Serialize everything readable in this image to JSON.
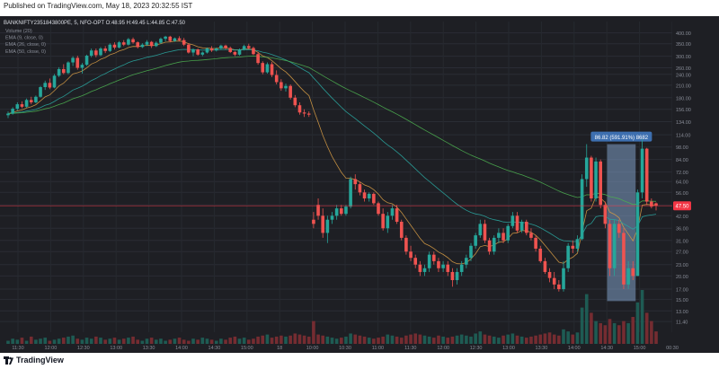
{
  "header": {
    "published": "Published on TradingView.com, May 18, 2023 20:32:55 IST"
  },
  "footer": {
    "brand": "TradingView"
  },
  "chart_data": {
    "type": "candlestick",
    "title": "BANKNIFTY2351843800PE, 5, NFO-OPT",
    "ohlc_legend": "O:48.95 H:49.45 L:44.85 C:47.50",
    "indicators": [
      "Volume (20)",
      "EMA (9, close, 0)",
      "EMA (26, close, 0)",
      "EMA (50, close, 0)"
    ],
    "y_axis": {
      "scale": "log",
      "range": [
        10,
        460
      ],
      "ticks": [
        400.0,
        350.0,
        300.0,
        260.0,
        240.0,
        210.0,
        180.0,
        156.0,
        134.0,
        114.0,
        98.0,
        84.0,
        72.0,
        64.0,
        56.0,
        48.0,
        42.0,
        36.0,
        31.0,
        27.0,
        23.0,
        20.0,
        17.0,
        15.0,
        13.0,
        11.4
      ]
    },
    "x_axis": {
      "ticks": [
        "11:30",
        "12:00",
        "12:30",
        "13:00",
        "13:30",
        "14:00",
        "14:30",
        "15:00",
        "18",
        "10:00",
        "10:30",
        "11:00",
        "11:30",
        "12:00",
        "12:30",
        "13:00",
        "13:30",
        "14:00",
        "14:30",
        "15:00",
        "00:30"
      ]
    },
    "last_price": {
      "value": 47.5,
      "label": "47.50",
      "color": "#f23645"
    },
    "measure": {
      "label": "86.82 (591.91%) 8682",
      "from": 14.67,
      "to": 101.49,
      "start_bar": 130,
      "end_bar": 135
    },
    "colors": {
      "up": "#26a69a",
      "down": "#ef5350",
      "ema9": "#d49a45",
      "ema26": "#2aa6a0",
      "ema50": "#4caf50",
      "measure": "#7f9fc6"
    },
    "candles": [
      [
        145.0,
        152.0,
        140.0,
        148.0
      ],
      [
        148.0,
        160.0,
        146.0,
        157.0
      ],
      [
        157.0,
        170.0,
        154.0,
        166.0
      ],
      [
        166.0,
        172.0,
        158.0,
        161.0
      ],
      [
        161.0,
        178.0,
        159.0,
        175.0
      ],
      [
        175.0,
        182.0,
        166.0,
        170.0
      ],
      [
        170.0,
        185.0,
        168.0,
        182.0
      ],
      [
        182.0,
        208.0,
        180.0,
        205.0
      ],
      [
        205.0,
        222.0,
        198.0,
        216.0
      ],
      [
        216.0,
        228.0,
        200.0,
        204.0
      ],
      [
        204.0,
        241.0,
        202.0,
        236.0
      ],
      [
        236.0,
        262.0,
        232.0,
        256.0
      ],
      [
        256.0,
        272.0,
        240.0,
        244.0
      ],
      [
        244.0,
        282.0,
        240.0,
        278.0
      ],
      [
        278.0,
        300.0,
        266.0,
        294.0
      ],
      [
        294.0,
        302.0,
        254.0,
        260.0
      ],
      [
        260.0,
        276.0,
        242.0,
        270.0
      ],
      [
        270.0,
        306.0,
        266.0,
        302.0
      ],
      [
        302.0,
        330.0,
        296.0,
        322.0
      ],
      [
        322.0,
        330.0,
        296.0,
        304.0
      ],
      [
        304.0,
        336.0,
        300.0,
        330.0
      ],
      [
        330.0,
        340.0,
        312.0,
        320.0
      ],
      [
        320.0,
        352.0,
        316.0,
        346.0
      ],
      [
        346.0,
        356.0,
        326.0,
        334.0
      ],
      [
        334.0,
        362.0,
        330.0,
        356.0
      ],
      [
        356.0,
        366.0,
        340.0,
        346.0
      ],
      [
        346.0,
        376.0,
        342.0,
        370.0
      ],
      [
        370.0,
        378.0,
        350.0,
        356.0
      ],
      [
        356.0,
        360.0,
        330.0,
        336.0
      ],
      [
        336.0,
        352.0,
        332.0,
        346.0
      ],
      [
        346.0,
        366.0,
        340.0,
        358.0
      ],
      [
        358.0,
        362.0,
        332.0,
        340.0
      ],
      [
        340.0,
        360.0,
        336.0,
        354.0
      ],
      [
        354.0,
        378.0,
        350.0,
        372.0
      ],
      [
        372.0,
        386.0,
        360.0,
        382.0
      ],
      [
        382.0,
        386.0,
        356.0,
        362.0
      ],
      [
        362.0,
        378.0,
        358.0,
        374.0
      ],
      [
        374.0,
        384.0,
        360.0,
        366.0
      ],
      [
        366.0,
        376.0,
        340.0,
        346.0
      ],
      [
        346.0,
        352.0,
        310.0,
        314.0
      ],
      [
        314.0,
        330.0,
        300.0,
        326.0
      ],
      [
        326.0,
        330.0,
        302.0,
        306.0
      ],
      [
        306.0,
        318.0,
        300.0,
        314.0
      ],
      [
        314.0,
        334.0,
        310.0,
        330.0
      ],
      [
        330.0,
        340.0,
        316.0,
        322.0
      ],
      [
        322.0,
        334.0,
        318.0,
        330.0
      ],
      [
        330.0,
        346.0,
        326.0,
        342.0
      ],
      [
        342.0,
        346.0,
        326.0,
        332.0
      ],
      [
        332.0,
        338.0,
        312.0,
        316.0
      ],
      [
        316.0,
        320.0,
        300.0,
        306.0
      ],
      [
        306.0,
        330.0,
        302.0,
        326.0
      ],
      [
        326.0,
        346.0,
        322.0,
        340.0
      ],
      [
        340.0,
        350.0,
        326.0,
        332.0
      ],
      [
        332.0,
        338.0,
        304.0,
        308.0
      ],
      [
        308.0,
        316.0,
        270.0,
        276.0
      ],
      [
        276.0,
        282.0,
        240.0,
        246.0
      ],
      [
        246.0,
        278.0,
        242.0,
        272.0
      ],
      [
        272.0,
        280.0,
        232.0,
        238.0
      ],
      [
        238.0,
        252.0,
        212.0,
        218.0
      ],
      [
        218.0,
        226.0,
        196.0,
        202.0
      ],
      [
        202.0,
        214.0,
        194.0,
        208.0
      ],
      [
        208.0,
        212.0,
        176.0,
        180.0
      ],
      [
        180.0,
        186.0,
        160.0,
        164.0
      ],
      [
        164.0,
        170.0,
        146.0,
        150.0
      ],
      [
        150.0,
        156.0,
        142.0,
        148.0
      ],
      [
        148.0,
        152.0,
        142.0,
        146.0
      ],
      [
        40.0,
        44.0,
        36.0,
        38.0
      ],
      [
        48.0,
        52.0,
        40.0,
        42.0
      ],
      [
        42.0,
        46.0,
        32.0,
        34.0
      ],
      [
        34.0,
        42.0,
        30.0,
        40.0
      ],
      [
        40.0,
        44.0,
        38.0,
        42.0
      ],
      [
        42.0,
        48.0,
        40.0,
        46.0
      ],
      [
        46.0,
        48.0,
        42.0,
        43.0
      ],
      [
        43.0,
        48.0,
        42.0,
        47.0
      ],
      [
        47.0,
        68.0,
        46.0,
        66.0
      ],
      [
        66.0,
        70.0,
        58.0,
        62.0
      ],
      [
        62.0,
        64.0,
        54.0,
        56.0
      ],
      [
        56.0,
        58.0,
        50.0,
        52.0
      ],
      [
        52.0,
        56.0,
        50.0,
        55.0
      ],
      [
        55.0,
        56.0,
        48.0,
        49.0
      ],
      [
        49.0,
        50.0,
        42.0,
        43.0
      ],
      [
        43.0,
        46.0,
        35.0,
        36.0
      ],
      [
        36.0,
        44.0,
        34.0,
        42.0
      ],
      [
        42.0,
        48.0,
        40.0,
        46.0
      ],
      [
        46.0,
        48.0,
        38.0,
        39.0
      ],
      [
        39.0,
        40.0,
        31.0,
        32.0
      ],
      [
        32.0,
        33.0,
        26.0,
        27.0
      ],
      [
        27.0,
        29.0,
        24.0,
        25.0
      ],
      [
        25.0,
        26.0,
        22.0,
        23.0
      ],
      [
        23.0,
        24.0,
        20.0,
        21.0
      ],
      [
        21.0,
        23.0,
        20.0,
        22.0
      ],
      [
        22.0,
        27.0,
        21.0,
        26.0
      ],
      [
        26.0,
        27.0,
        23.0,
        24.0
      ],
      [
        24.0,
        25.0,
        21.0,
        22.0
      ],
      [
        22.0,
        24.0,
        21.0,
        23.0
      ],
      [
        23.0,
        24.0,
        20.0,
        21.0
      ],
      [
        21.0,
        22.0,
        17.5,
        19.0
      ],
      [
        19.0,
        22.0,
        18.0,
        21.0
      ],
      [
        21.0,
        24.0,
        20.0,
        23.0
      ],
      [
        23.0,
        26.0,
        22.0,
        25.0
      ],
      [
        25.0,
        30.0,
        24.0,
        29.0
      ],
      [
        29.0,
        34.0,
        28.0,
        33.0
      ],
      [
        33.0,
        40.0,
        32.0,
        38.0
      ],
      [
        38.0,
        40.0,
        30.0,
        31.0
      ],
      [
        31.0,
        32.0,
        26.0,
        27.0
      ],
      [
        27.0,
        33.0,
        26.0,
        32.0
      ],
      [
        32.0,
        36.0,
        30.0,
        34.0
      ],
      [
        34.0,
        36.0,
        30.0,
        31.0
      ],
      [
        31.0,
        38.0,
        30.0,
        37.0
      ],
      [
        37.0,
        44.0,
        36.0,
        42.0
      ],
      [
        42.0,
        44.0,
        34.0,
        35.0
      ],
      [
        35.0,
        40.0,
        34.0,
        39.0
      ],
      [
        39.0,
        40.0,
        33.0,
        34.0
      ],
      [
        34.0,
        36.0,
        31.0,
        32.0
      ],
      [
        32.0,
        33.0,
        27.0,
        28.0
      ],
      [
        28.0,
        29.0,
        23.5,
        24.0
      ],
      [
        24.0,
        25.0,
        20.5,
        21.0
      ],
      [
        21.0,
        22.0,
        18.5,
        19.5
      ],
      [
        19.5,
        21.0,
        17.0,
        18.0
      ],
      [
        18.0,
        19.0,
        16.5,
        17.0
      ],
      [
        17.0,
        24.0,
        16.5,
        22.0
      ],
      [
        22.0,
        30.0,
        21.0,
        29.0
      ],
      [
        29.0,
        31.0,
        26.5,
        28.0
      ],
      [
        28.0,
        33.0,
        27.0,
        31.5
      ],
      [
        31.5,
        70.0,
        31.0,
        66.0
      ],
      [
        66.0,
        101.5,
        60.0,
        86.0
      ],
      [
        86.0,
        88.0,
        50.0,
        52.0
      ],
      [
        52.0,
        86.0,
        50.0,
        82.0
      ],
      [
        82.0,
        84.0,
        46.0,
        48.0
      ],
      [
        48.0,
        50.0,
        36.0,
        38.0
      ],
      [
        38.0,
        40.0,
        20.0,
        22.0
      ],
      [
        22.0,
        40.0,
        20.0,
        38.0
      ],
      [
        38.0,
        40.0,
        32.0,
        34.0
      ],
      [
        34.0,
        36.0,
        17.0,
        18.0
      ],
      [
        18.0,
        24.0,
        17.0,
        22.0
      ],
      [
        22.0,
        24.0,
        19.0,
        20.0
      ],
      [
        20.0,
        58.0,
        20.0,
        56.0
      ],
      [
        56.0,
        108.0,
        52.0,
        96.0
      ],
      [
        96.0,
        97.0,
        48.0,
        50.0
      ],
      [
        50.0,
        52.0,
        46.0,
        47.0
      ],
      [
        48.95,
        49.45,
        44.85,
        47.5
      ]
    ],
    "volume": [
      3.0,
      5.0,
      4.0,
      6.0,
      3.0,
      7.0,
      4.0,
      5.0,
      6.0,
      3.0,
      4.0,
      5.0,
      6.0,
      7.0,
      8.0,
      5.0,
      4.0,
      6.0,
      5.0,
      7.0,
      6.0,
      4.0,
      5.0,
      6.0,
      4.0,
      5.0,
      6.0,
      7.0,
      4.0,
      3.0,
      5.0,
      6.0,
      4.0,
      5.0,
      3.0,
      4.0,
      5.0,
      6.0,
      4.0,
      3.0,
      5.0,
      4.0,
      6.0,
      5.0,
      4.0,
      3.0,
      5.0,
      4.0,
      6.0,
      7.0,
      5.0,
      6.0,
      4.0,
      5.0,
      7.0,
      8.0,
      9.0,
      6.0,
      7.0,
      8.0,
      7.0,
      8.0,
      10.0,
      9.0,
      8.0,
      7.0,
      22.0,
      9.0,
      8.0,
      7.0,
      6.0,
      5.0,
      6.0,
      7.0,
      10.0,
      9.0,
      8.0,
      7.0,
      6.0,
      5.0,
      6.0,
      7.0,
      9.0,
      8.0,
      7.0,
      6.0,
      8.0,
      9.0,
      10.0,
      9.0,
      8.0,
      7.0,
      6.0,
      8.0,
      7.0,
      6.0,
      7.0,
      8.0,
      9.0,
      8.0,
      7.0,
      10.0,
      12.0,
      9.0,
      8.0,
      7.0,
      6.0,
      8.0,
      9.0,
      10.0,
      8.0,
      7.0,
      6.0,
      7.0,
      8.0,
      9.0,
      10.0,
      11.0,
      9.0,
      8.0,
      14.0,
      12.0,
      9.0,
      11.0,
      35.0,
      48.0,
      30.0,
      22.0,
      20.0,
      18.0,
      24.0,
      20.0,
      18.0,
      22.0,
      20.0,
      26.0,
      40.0,
      52.0,
      30.0,
      22.0,
      12.0
    ]
  }
}
